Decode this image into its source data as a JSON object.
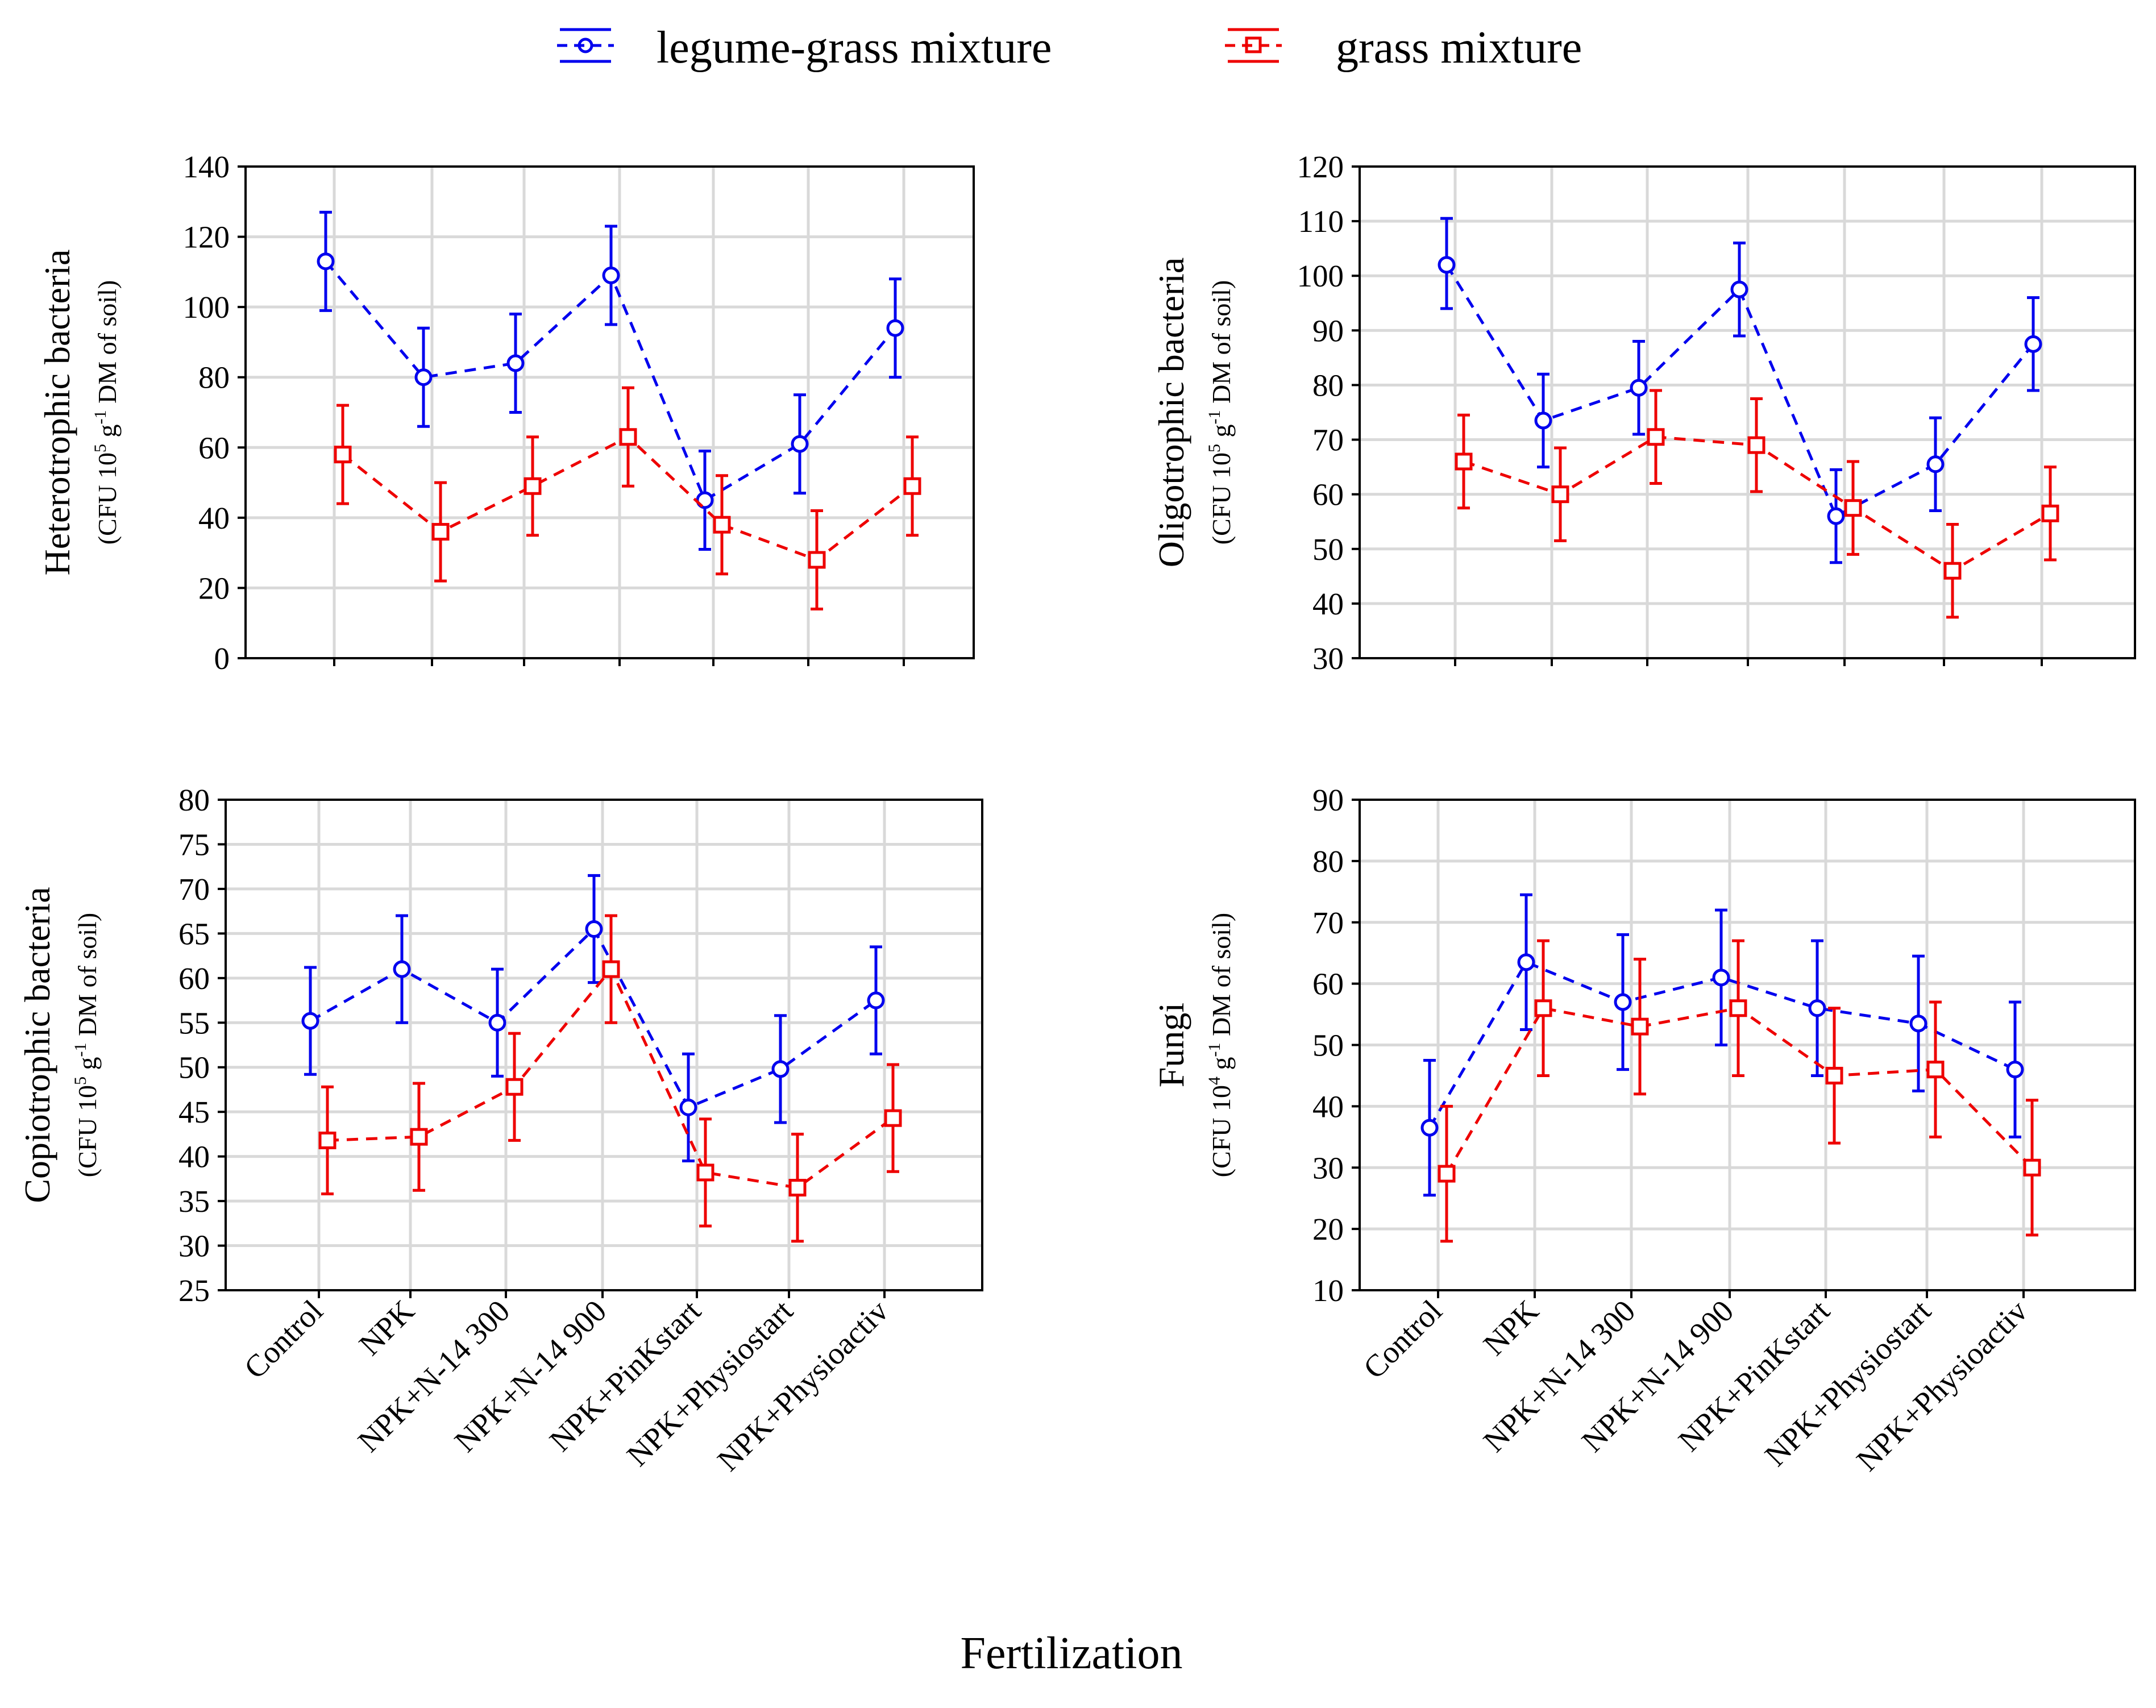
{
  "figure": {
    "xlabel": "Fertilization",
    "categories": [
      "Control",
      "NPK",
      "NPK+N-14 300",
      "NPK+N-14 900",
      "NPK+PinKstart",
      "NPK+Physiostart",
      "NPK+Physioactiv"
    ],
    "legend": [
      {
        "name": "legume-grass mixture",
        "color": "#0000ee",
        "marker": "circle-marker-icon"
      },
      {
        "name": "grass mixture",
        "color": "#ee0000",
        "marker": "square-marker-icon"
      }
    ]
  },
  "chart_data": [
    {
      "type": "line",
      "title": "",
      "ylabel": "Heterotrophic bacteria",
      "yunit": {
        "pre": "(CFU 10",
        "exp": "5",
        "mid": " g",
        "exp2": "-1",
        "post": " DM of soil)"
      },
      "ylim": [
        0,
        140
      ],
      "yticks": [
        "0",
        "20",
        "40",
        "60",
        "80",
        "100",
        "120",
        "140"
      ],
      "show_categories": false,
      "series": [
        {
          "name": "legume-grass mixture",
          "values": [
            113,
            80,
            84,
            109,
            45,
            61,
            94
          ],
          "lower": [
            99,
            66,
            70,
            95,
            31,
            47,
            80
          ],
          "upper": [
            127,
            94,
            98,
            123,
            59,
            75,
            108
          ]
        },
        {
          "name": "grass mixture",
          "values": [
            58,
            36,
            49,
            63,
            38,
            28,
            49
          ],
          "lower": [
            44,
            22,
            35,
            49,
            24,
            14,
            35
          ],
          "upper": [
            72,
            50,
            63,
            77,
            52,
            42,
            63
          ]
        }
      ]
    },
    {
      "type": "line",
      "title": "",
      "ylabel": "Oligotrophic bacteria",
      "yunit": {
        "pre": "(CFU 10",
        "exp": "5",
        "mid": " g",
        "exp2": "-1",
        "post": " DM of soil)"
      },
      "ylim": [
        30,
        120
      ],
      "yticks": [
        "30",
        "40",
        "50",
        "60",
        "70",
        "80",
        "90",
        "100",
        "110",
        "120"
      ],
      "show_categories": false,
      "series": [
        {
          "name": "legume-grass mixture",
          "values": [
            102,
            73.5,
            79.5,
            97.5,
            56,
            65.5,
            87.5
          ],
          "lower": [
            94,
            65,
            71,
            89,
            47.5,
            57,
            79
          ],
          "upper": [
            110.5,
            82,
            88,
            106,
            64.5,
            74,
            96
          ]
        },
        {
          "name": "grass mixture",
          "values": [
            66,
            60,
            70.5,
            69,
            57.5,
            46,
            56.5
          ],
          "lower": [
            57.5,
            51.5,
            62,
            60.5,
            49,
            37.5,
            48
          ],
          "upper": [
            74.5,
            68.5,
            79,
            77.5,
            66,
            54.5,
            65
          ]
        }
      ]
    },
    {
      "type": "line",
      "title": "",
      "ylabel": "Copiotrophic bacteria",
      "yunit": {
        "pre": "(CFU 10",
        "exp": "5",
        "mid": " g",
        "exp2": "-1",
        "post": " DM of soil)"
      },
      "ylim": [
        25,
        80
      ],
      "yticks": [
        "25",
        "30",
        "35",
        "40",
        "45",
        "50",
        "55",
        "60",
        "65",
        "70",
        "75",
        "80"
      ],
      "show_categories": true,
      "series": [
        {
          "name": "legume-grass mixture",
          "values": [
            55.2,
            61,
            55,
            65.5,
            45.5,
            49.8,
            57.5
          ],
          "lower": [
            49.2,
            55,
            49,
            59.5,
            39.5,
            43.8,
            51.5
          ],
          "upper": [
            61.2,
            67,
            61,
            71.5,
            51.5,
            55.8,
            63.5
          ]
        },
        {
          "name": "grass mixture",
          "values": [
            41.8,
            42.2,
            47.8,
            61,
            38.2,
            36.5,
            44.3
          ],
          "lower": [
            35.8,
            36.2,
            41.8,
            55,
            32.2,
            30.5,
            38.3
          ],
          "upper": [
            47.8,
            48.2,
            53.8,
            67,
            44.2,
            42.5,
            50.3
          ]
        }
      ]
    },
    {
      "type": "line",
      "title": "",
      "ylabel": "Fungi",
      "yunit": {
        "pre": "(CFU 10",
        "exp": "4",
        "mid": " g",
        "exp2": "-1",
        "post": " DM of soil)"
      },
      "ylim": [
        10,
        90
      ],
      "yticks": [
        "10",
        "20",
        "30",
        "40",
        "50",
        "60",
        "70",
        "80",
        "90"
      ],
      "show_categories": true,
      "series": [
        {
          "name": "legume-grass mixture",
          "values": [
            36.5,
            63.5,
            57,
            61,
            56,
            53.5,
            46
          ],
          "lower": [
            25.5,
            52.5,
            46,
            50,
            45,
            42.5,
            35
          ],
          "upper": [
            47.5,
            74.5,
            68,
            72,
            67,
            64.5,
            57
          ]
        },
        {
          "name": "grass mixture",
          "values": [
            29,
            56,
            53,
            56,
            45,
            46,
            30
          ],
          "lower": [
            18,
            45,
            42,
            45,
            34,
            35,
            19
          ],
          "upper": [
            40,
            67,
            64,
            67,
            56,
            57,
            41
          ]
        }
      ]
    }
  ]
}
